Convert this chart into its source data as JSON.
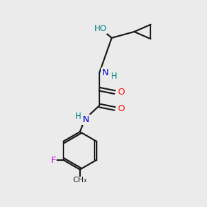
{
  "bg_color": "#ebebeb",
  "bond_color": "#1a1a1a",
  "atom_colors": {
    "O": "#ff0000",
    "N": "#0000cc",
    "F": "#cc00cc",
    "HO": "#008080",
    "H": "#008080"
  }
}
